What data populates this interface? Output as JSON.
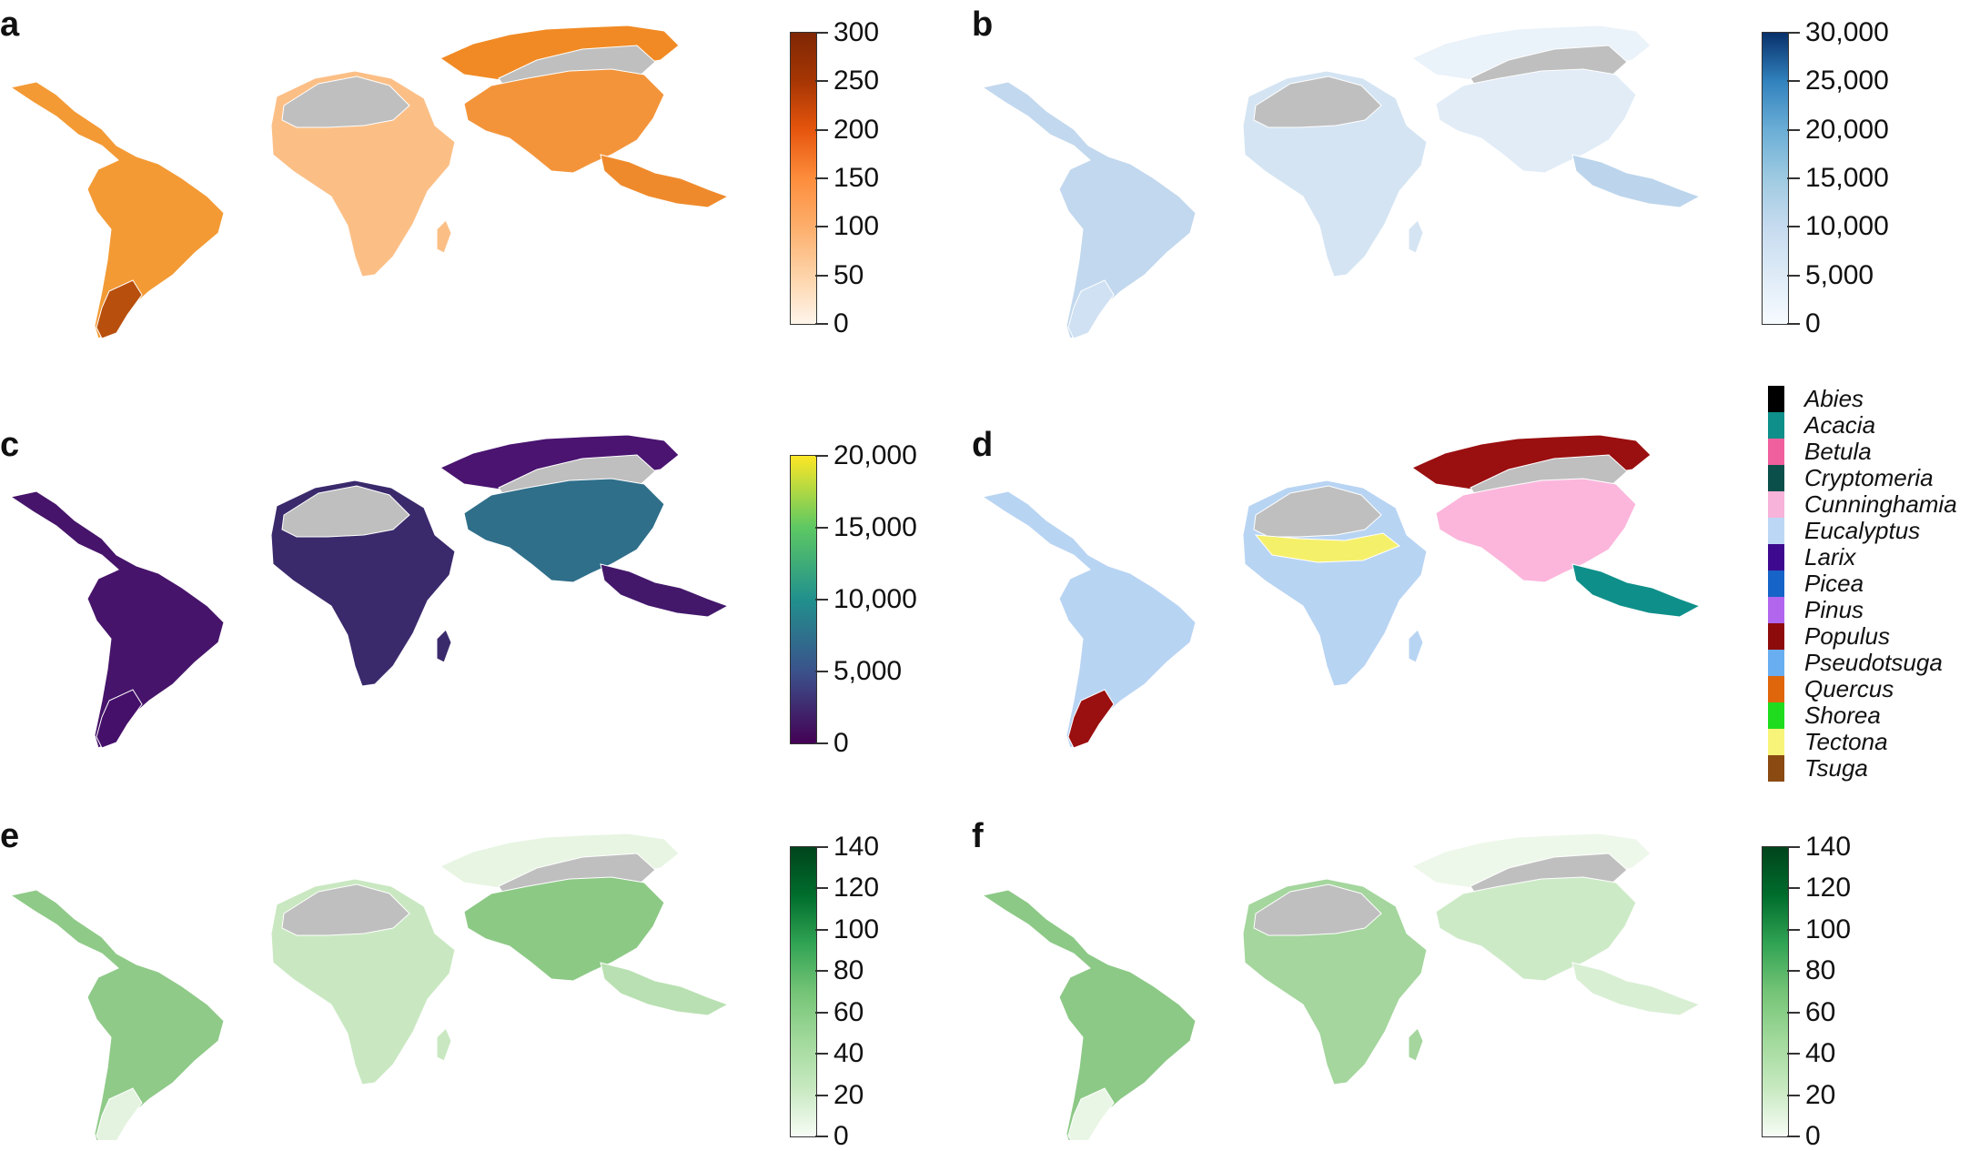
{
  "panels": [
    {
      "id": "a",
      "letter": "a",
      "palette": [
        "#fff5eb",
        "#fdd3a8",
        "#fdae6b",
        "#fd8d3c",
        "#e6550d",
        "#a63603",
        "#7f2704"
      ],
      "colorbar": {
        "ticks": [
          "300",
          "250",
          "200",
          "150",
          "100",
          "50",
          "0"
        ]
      },
      "regions": {
        "latam": "#f39a35",
        "africa": "#fbbf86",
        "asia": "#f3943a",
        "sea": "#ef8a2c",
        "patagonia": "#b84f0d",
        "north": "#f18a24"
      }
    },
    {
      "id": "b",
      "letter": "b",
      "palette": [
        "#f7fbff",
        "#deebf7",
        "#c6dbef",
        "#9ecae1",
        "#6baed6",
        "#3182bd",
        "#08306b"
      ],
      "colorbar": {
        "ticks": [
          "30,000",
          "25,000",
          "20,000",
          "15,000",
          "10,000",
          "5,000",
          "0"
        ]
      },
      "regions": {
        "latam": "#c2d8ee",
        "africa": "#d4e4f3",
        "asia": "#e1ecf7",
        "sea": "#bcd5ec",
        "patagonia": "#cfe1f2",
        "north": "#eaf2fa"
      }
    },
    {
      "id": "c",
      "letter": "c",
      "palette": [
        "#440154",
        "#3b528b",
        "#21908d",
        "#5dc863",
        "#fde725"
      ],
      "colorbar": {
        "ticks": [
          "20,000",
          "15,000",
          "10,000",
          "5,000",
          "0"
        ]
      },
      "regions": {
        "latam": "#46146a",
        "africa": "#3a2a6c",
        "asia": "#2f6f8a",
        "sea": "#43186b",
        "patagonia": "#45106a",
        "north": "#4a1470"
      }
    },
    {
      "id": "d",
      "letter": "d",
      "categorical": true,
      "regions": {
        "latam": "#b8d4f3",
        "africa": "#b8d4f3",
        "asia": "#fcb6dc",
        "sea": "#0f8f8a",
        "patagonia": "#9a0f10",
        "north": "#9a0f10",
        "sahel": "#f5f06a"
      }
    },
    {
      "id": "e",
      "letter": "e",
      "palette": [
        "#f7fcf5",
        "#c7e9c0",
        "#a1d99b",
        "#74c476",
        "#31a354",
        "#006d2c",
        "#00441b"
      ],
      "colorbar": {
        "ticks": [
          "140",
          "120",
          "100",
          "80",
          "60",
          "40",
          "20",
          "0"
        ]
      },
      "regions": {
        "latam": "#8fca88",
        "africa": "#c9e8c1",
        "asia": "#8cc985",
        "sea": "#b9e0b2",
        "patagonia": "#e4f3df",
        "north": "#e7f5e2"
      }
    },
    {
      "id": "f",
      "letter": "f",
      "palette": [
        "#f7fcf5",
        "#c7e9c0",
        "#a1d99b",
        "#74c476",
        "#31a354",
        "#006d2c",
        "#00441b"
      ],
      "colorbar": {
        "ticks": [
          "140",
          "120",
          "100",
          "80",
          "60",
          "40",
          "20",
          "0"
        ]
      },
      "regions": {
        "latam": "#8cc986",
        "africa": "#a4d69d",
        "asia": "#cdeac7",
        "sea": "#d9efd4",
        "patagonia": "#e9f6e5",
        "north": "#eef8ea"
      }
    }
  ],
  "legend_d": [
    {
      "label": "Abies",
      "color": "#000000"
    },
    {
      "label": "Acacia",
      "color": "#0f8f8a"
    },
    {
      "label": "Betula",
      "color": "#f0609e"
    },
    {
      "label": "Cryptomeria",
      "color": "#0b4f4a"
    },
    {
      "label": "Cunninghamia",
      "color": "#f7b3d9"
    },
    {
      "label": "Eucalyptus",
      "color": "#bcd7f5"
    },
    {
      "label": "Larix",
      "color": "#3d0a8f"
    },
    {
      "label": "Picea",
      "color": "#1664c7"
    },
    {
      "label": "Pinus",
      "color": "#b266ee"
    },
    {
      "label": "Populus",
      "color": "#8e0b0b"
    },
    {
      "label": "Pseudotsuga",
      "color": "#69aef0"
    },
    {
      "label": "Quercus",
      "color": "#e0660b"
    },
    {
      "label": "Shorea",
      "color": "#1fdc1f"
    },
    {
      "label": "Tectona",
      "color": "#f8f47a"
    },
    {
      "label": "Tsuga",
      "color": "#8a4a12"
    }
  ],
  "land_gray": "#bfbfbf"
}
